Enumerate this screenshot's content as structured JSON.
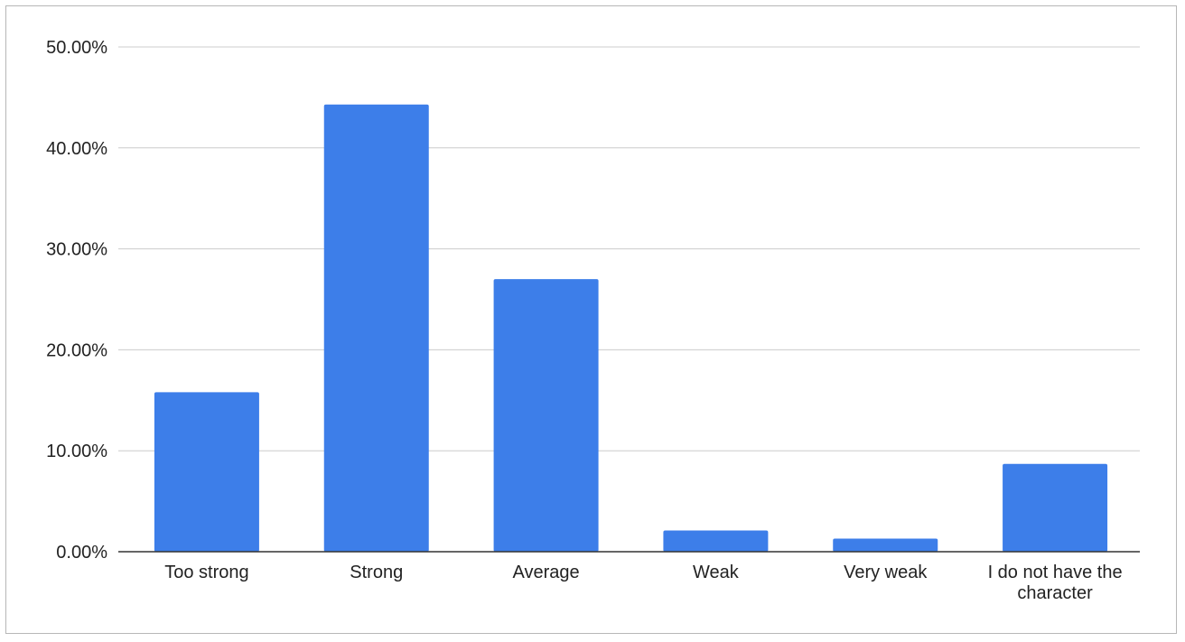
{
  "chart_data": {
    "type": "bar",
    "title": "",
    "xlabel": "",
    "ylabel": "",
    "categories": [
      "Too strong",
      "Strong",
      "Average",
      "Weak",
      "Very weak",
      "I do not have the character"
    ],
    "category_lines": [
      [
        "Too strong"
      ],
      [
        "Strong"
      ],
      [
        "Average"
      ],
      [
        "Weak"
      ],
      [
        "Very weak"
      ],
      [
        "I do not have the",
        "character"
      ]
    ],
    "values": [
      15.8,
      44.3,
      27.0,
      2.1,
      1.3,
      8.7
    ],
    "ylim": [
      0,
      50
    ],
    "yticks": [
      0,
      10,
      20,
      30,
      40,
      50
    ],
    "ytick_labels": [
      "0.00%",
      "10.00%",
      "20.00%",
      "30.00%",
      "40.00%",
      "50.00%"
    ],
    "grid": true,
    "legend": "none",
    "bar_color": "#3d7ee9",
    "grid_color": "#cccccc",
    "axis_color": "#333333"
  }
}
